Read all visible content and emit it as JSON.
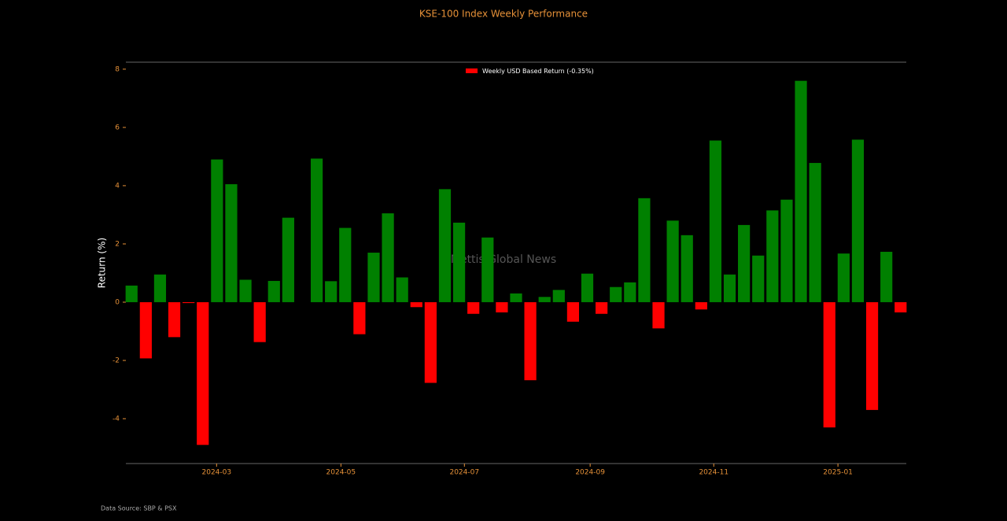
{
  "chart_data": {
    "type": "bar",
    "title": "KSE-100 Index Weekly Performance",
    "y_label": "Return (%)",
    "watermark": "Mettis Global News",
    "source": "Data Source: SBP & PSX",
    "legend": {
      "label": "Weekly USD Based Return (-0.35%)",
      "color": "#ff0000",
      "position": "top"
    },
    "positive_color": "#008000",
    "negative_color": "#ff0000",
    "categories": [
      null,
      null,
      null,
      null,
      null,
      null,
      null,
      null,
      null,
      null,
      null,
      null,
      null,
      null,
      null,
      null,
      null,
      null,
      null,
      null,
      null,
      null,
      null,
      null,
      null,
      null,
      null,
      null,
      null,
      null,
      null,
      null,
      null,
      null,
      null,
      null,
      null,
      null,
      null,
      null,
      null,
      null,
      null,
      null,
      null,
      null,
      null,
      null,
      null,
      null,
      null,
      null,
      null,
      null,
      null
    ],
    "values": [
      0.57,
      -1.93,
      0.95,
      -1.2,
      -0.03,
      -4.9,
      4.9,
      4.05,
      0.77,
      -1.37,
      0.73,
      2.9,
      0,
      4.93,
      0.72,
      2.55,
      -1.1,
      1.7,
      3.05,
      0.85,
      -0.17,
      -2.77,
      3.88,
      2.73,
      -0.4,
      2.22,
      -0.35,
      0.3,
      -2.68,
      0.18,
      0.42,
      -0.67,
      0.98,
      -0.4,
      0.52,
      0.68,
      3.57,
      -0.9,
      2.8,
      2.3,
      -0.25,
      5.55,
      0.95,
      2.65,
      1.6,
      3.15,
      3.52,
      7.6,
      4.78,
      -4.3,
      1.67,
      5.58,
      -3.7,
      1.73,
      -0.35
    ],
    "xlim": [
      -0.4,
      54.4
    ],
    "xticks": [
      {
        "value": 5.97,
        "label": "2024-03"
      },
      {
        "value": 14.7,
        "label": "2024-05"
      },
      {
        "value": 23.37,
        "label": "2024-07"
      },
      {
        "value": 32.2,
        "label": "2024-09"
      },
      {
        "value": 40.88,
        "label": "2024-11"
      },
      {
        "value": 49.6,
        "label": "2025-01"
      }
    ],
    "ylim": [
      -5.54,
      8.24
    ],
    "yticks": [
      -4,
      -2,
      0,
      2,
      4,
      6,
      8
    ],
    "grid": false
  }
}
